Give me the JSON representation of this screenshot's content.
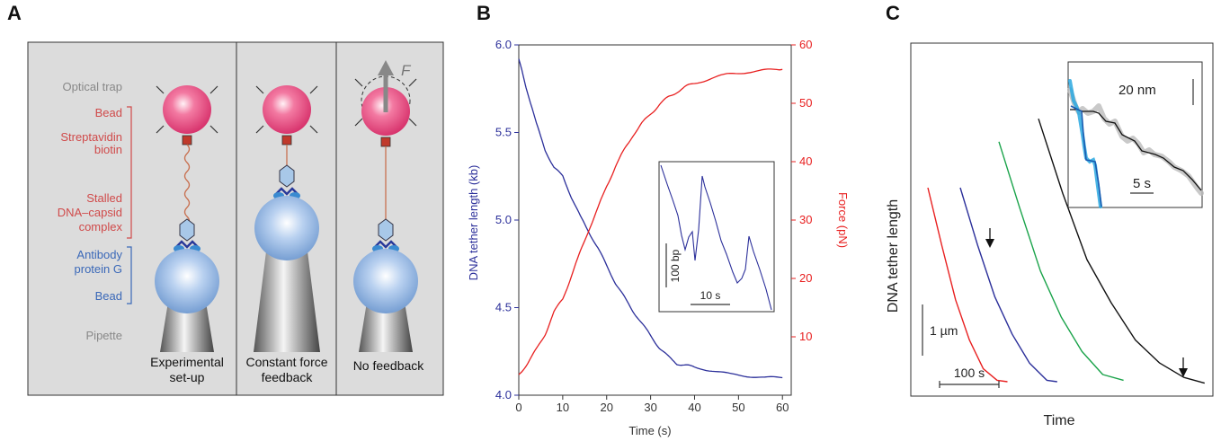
{
  "panels": {
    "A": {
      "letter": "A",
      "labels": {
        "optical_trap": "Optical trap",
        "bead_top": "Bead",
        "streptavidin": "Streptavidin",
        "biotin": "biotin",
        "stalled": "Stalled",
        "dna_capsid": "DNA–capsid",
        "complex": "complex",
        "antibody": "Antibody",
        "protein_g": "protein G",
        "bead_bottom": "Bead",
        "pipette": "Pipette",
        "force_symbol": "F"
      },
      "captions": {
        "c1a": "Experimental",
        "c1b": "set-up",
        "c2a": "Constant force",
        "c2b": "feedback",
        "c3": "No feedback"
      }
    },
    "B": {
      "letter": "B",
      "ylabel_left": "DNA tether length (kb)",
      "ylabel_right": "Force (pN)",
      "xlabel": "Time (s)",
      "inset_scale_y": "100 bp",
      "inset_scale_x": "10 s"
    },
    "C": {
      "letter": "C",
      "ylabel": "DNA tether length",
      "xlabel": "Time",
      "scale_y": "1 µm",
      "scale_x": "100 s",
      "inset_scale_y": "20 nm",
      "inset_scale_x": "5 s"
    }
  },
  "colors": {
    "panel_bg": "#dcdcdc",
    "bead_pink": "#e8457a",
    "bead_blue": "#8fb4e0",
    "trace_blue": "#2b2f9a",
    "trace_red": "#e82020",
    "trace_green": "#1aa34a",
    "trace_black": "#111111",
    "inset_cyan": "#2aa8e0"
  },
  "chart_data": [
    {
      "type": "line",
      "panel": "B",
      "xlabel": "Time (s)",
      "ylabel": "DNA tether length (kb)",
      "y2label": "Force (pN)",
      "xlim": [
        0,
        62
      ],
      "ylim": [
        4.0,
        6.0
      ],
      "y2lim": [
        0,
        60
      ],
      "x_ticks": [
        0,
        10,
        20,
        30,
        40,
        50,
        60
      ],
      "y_ticks": [
        4.0,
        4.5,
        5.0,
        5.5,
        6.0
      ],
      "y2_ticks": [
        10,
        20,
        30,
        40,
        50,
        60
      ],
      "series": [
        {
          "axis": "left",
          "color": "#2b2f9a",
          "x": [
            0,
            1,
            2,
            4,
            6,
            8,
            10,
            12,
            14,
            16,
            18,
            20,
            22,
            24,
            26,
            28,
            30,
            32,
            34,
            36,
            38,
            40,
            44,
            48,
            52,
            56,
            60
          ],
          "y": [
            5.92,
            5.82,
            5.73,
            5.55,
            5.4,
            5.3,
            5.25,
            5.13,
            5.02,
            4.93,
            4.84,
            4.74,
            4.64,
            4.56,
            4.48,
            4.41,
            4.34,
            4.27,
            4.22,
            4.18,
            4.17,
            4.16,
            4.14,
            4.12,
            4.11,
            4.1,
            4.1
          ]
        },
        {
          "axis": "right",
          "color": "#e82020",
          "x": [
            0,
            2,
            4,
            6,
            8,
            10,
            12,
            14,
            16,
            18,
            20,
            22,
            24,
            26,
            28,
            30,
            32,
            34,
            36,
            38,
            40,
            44,
            48,
            52,
            56,
            60
          ],
          "y": [
            3.5,
            5.5,
            7.8,
            10.5,
            14.2,
            16.5,
            20.5,
            24.5,
            28.5,
            32.0,
            35.8,
            39.2,
            42.0,
            44.6,
            46.5,
            48.2,
            49.8,
            51.0,
            52.0,
            52.8,
            53.5,
            54.3,
            55.0,
            55.4,
            55.6,
            55.8
          ]
        }
      ]
    },
    {
      "type": "line",
      "panel": "C",
      "xlabel": "Time",
      "ylabel": "DNA tether length",
      "series": [
        {
          "color": "#e82020",
          "points": [
            [
              0,
              7.0
            ],
            [
              20,
              5.0
            ],
            [
              40,
              3.1
            ],
            [
              60,
              1.7
            ],
            [
              80,
              0.7
            ],
            [
              100,
              0.3
            ],
            [
              115,
              0.25
            ]
          ]
        },
        {
          "color": "#2b2f9a",
          "points": [
            [
              0,
              7.0
            ],
            [
              25,
              5.0
            ],
            [
              50,
              3.2
            ],
            [
              75,
              1.9
            ],
            [
              100,
              0.9
            ],
            [
              125,
              0.3
            ],
            [
              140,
              0.25
            ]
          ]
        },
        {
          "color": "#1aa34a",
          "points": [
            [
              0,
              8.6
            ],
            [
              30,
              6.3
            ],
            [
              60,
              4.1
            ],
            [
              90,
              2.5
            ],
            [
              120,
              1.3
            ],
            [
              150,
              0.5
            ],
            [
              180,
              0.3
            ]
          ]
        },
        {
          "color": "#111111",
          "points": [
            [
              0,
              9.4
            ],
            [
              35,
              6.8
            ],
            [
              70,
              4.5
            ],
            [
              105,
              3.0
            ],
            [
              140,
              1.7
            ],
            [
              175,
              0.9
            ],
            [
              210,
              0.4
            ],
            [
              240,
              0.2
            ]
          ]
        }
      ]
    }
  ]
}
